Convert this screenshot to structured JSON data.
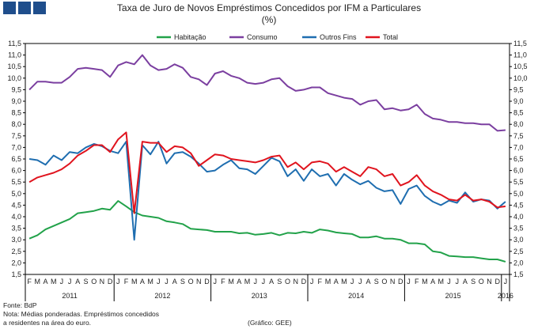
{
  "chart_data": {
    "type": "line",
    "title": "Taxa de Juro de Novos Empréstimos Concedidos por IFM a Particulares",
    "subtitle": "(%)",
    "ylim": [
      1.5,
      11.5
    ],
    "y_ticks": [
      "1,5",
      "2,0",
      "2,5",
      "3,0",
      "3,5",
      "4,0",
      "4,5",
      "5,0",
      "5,5",
      "6,0",
      "6,5",
      "7,0",
      "7,5",
      "8,0",
      "8,5",
      "9,0",
      "9,5",
      "10,0",
      "10,5",
      "11,0",
      "11,5"
    ],
    "month_labels": [
      "F",
      "M",
      "A",
      "M",
      "J",
      "J",
      "A",
      "S",
      "O",
      "N",
      "D",
      "J",
      "F",
      "M",
      "A",
      "M",
      "J",
      "J",
      "A",
      "S",
      "O",
      "N",
      "D",
      "J",
      "F",
      "M",
      "A",
      "M",
      "J",
      "J",
      "A",
      "S",
      "O",
      "N",
      "D",
      "J",
      "F",
      "M",
      "A",
      "M",
      "J",
      "J",
      "A",
      "S",
      "O",
      "N",
      "D",
      "J",
      "F",
      "M",
      "A",
      "M",
      "J",
      "J",
      "A",
      "S",
      "O",
      "N",
      "D",
      "J"
    ],
    "years": [
      {
        "label": "2011",
        "start": 0,
        "end": 10
      },
      {
        "label": "2012",
        "start": 11,
        "end": 22
      },
      {
        "label": "2013",
        "start": 23,
        "end": 34
      },
      {
        "label": "2014",
        "start": 35,
        "end": 46
      },
      {
        "label": "2015",
        "start": 47,
        "end": 58
      },
      {
        "label": "2016",
        "start": 59,
        "end": 59
      }
    ],
    "series": [
      {
        "name": "Habitação",
        "color": "#22a24a",
        "values": [
          3.05,
          3.2,
          3.45,
          3.6,
          3.75,
          3.9,
          4.15,
          4.2,
          4.25,
          4.35,
          4.3,
          4.68,
          4.45,
          4.2,
          4.05,
          4.0,
          3.95,
          3.8,
          3.75,
          3.68,
          3.48,
          3.45,
          3.42,
          3.35,
          3.35,
          3.35,
          3.28,
          3.3,
          3.22,
          3.25,
          3.3,
          3.2,
          3.3,
          3.28,
          3.35,
          3.3,
          3.45,
          3.4,
          3.32,
          3.28,
          3.25,
          3.1,
          3.1,
          3.15,
          3.05,
          3.05,
          3.0,
          2.85,
          2.85,
          2.8,
          2.5,
          2.45,
          2.3,
          2.28,
          2.25,
          2.25,
          2.2,
          2.15,
          2.15,
          2.05
        ]
      },
      {
        "name": "Consumo",
        "color": "#7b3fa0",
        "values": [
          9.5,
          9.85,
          9.85,
          9.8,
          9.8,
          10.05,
          10.4,
          10.45,
          10.4,
          10.35,
          10.05,
          10.55,
          10.7,
          10.6,
          11.0,
          10.55,
          10.35,
          10.4,
          10.6,
          10.45,
          10.05,
          9.95,
          9.7,
          10.2,
          10.3,
          10.1,
          10.0,
          9.8,
          9.75,
          9.8,
          9.95,
          10.0,
          9.65,
          9.45,
          9.5,
          9.6,
          9.6,
          9.35,
          9.25,
          9.15,
          9.1,
          8.85,
          9.0,
          9.05,
          8.65,
          8.7,
          8.6,
          8.65,
          8.85,
          8.45,
          8.25,
          8.2,
          8.1,
          8.1,
          8.05,
          8.05,
          8.0,
          8.0,
          7.72,
          7.75
        ]
      },
      {
        "name": "Outros Fins",
        "color": "#1f6eb0",
        "values": [
          6.5,
          6.45,
          6.25,
          6.65,
          6.45,
          6.8,
          6.75,
          7.0,
          7.15,
          7.05,
          6.85,
          6.75,
          7.25,
          3.0,
          7.1,
          6.7,
          7.25,
          6.3,
          6.75,
          6.8,
          6.6,
          6.3,
          5.95,
          6.0,
          6.25,
          6.45,
          6.1,
          6.05,
          5.85,
          6.2,
          6.55,
          6.4,
          5.75,
          6.05,
          5.55,
          6.05,
          5.75,
          5.85,
          5.35,
          5.85,
          5.6,
          5.4,
          5.55,
          5.25,
          5.1,
          5.15,
          4.55,
          5.2,
          5.35,
          4.9,
          4.65,
          4.5,
          4.7,
          4.6,
          5.05,
          4.65,
          4.75,
          4.7,
          4.35,
          4.65
        ]
      },
      {
        "name": "Total",
        "color": "#e0141e",
        "values": [
          5.5,
          5.7,
          5.8,
          5.9,
          6.05,
          6.3,
          6.65,
          6.85,
          7.1,
          7.1,
          6.8,
          7.35,
          7.65,
          4.15,
          7.25,
          7.2,
          7.2,
          6.8,
          7.05,
          7.0,
          6.75,
          6.2,
          6.45,
          6.7,
          6.65,
          6.5,
          6.45,
          6.4,
          6.35,
          6.45,
          6.6,
          6.65,
          6.15,
          6.35,
          6.05,
          6.35,
          6.4,
          6.3,
          5.95,
          6.15,
          5.95,
          5.75,
          6.15,
          6.05,
          5.75,
          5.85,
          5.35,
          5.5,
          5.8,
          5.35,
          5.1,
          4.95,
          4.75,
          4.7,
          4.95,
          4.7,
          4.75,
          4.65,
          4.4,
          4.45
        ]
      }
    ]
  },
  "footer": {
    "source": "Fonte: BdP",
    "note_line1": "Nota: Médias ponderadas. Empréstimos concedidos",
    "note_line2": "a residentes na área do euro.",
    "credit": "(Gráfico: GEE)"
  }
}
